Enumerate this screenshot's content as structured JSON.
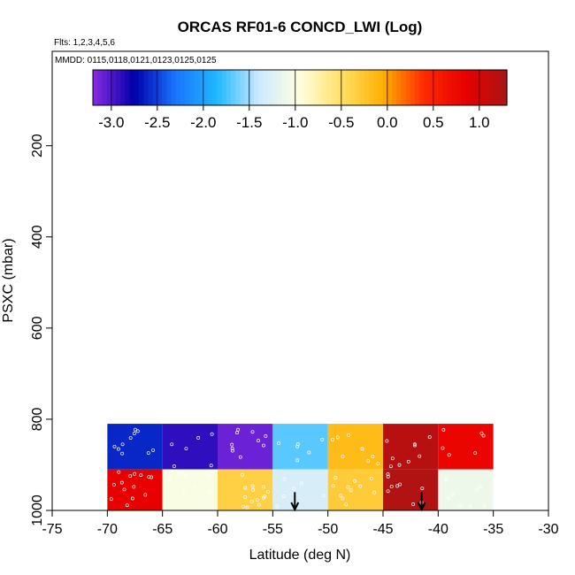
{
  "chart_data": {
    "type": "heatmap",
    "title": "ORCAS RF01-6 CONCD_LWI (Log)",
    "flights_note": "Flts: 1,2,3,4,5,6",
    "dates_note": "MMDD: 0115,0118,0121,0123,0125,0125",
    "xlabel": "Latitude (deg N)",
    "ylabel": "PSXC (mbar)",
    "xlim": [
      -75,
      -30
    ],
    "ylim": [
      1000,
      0
    ],
    "x_ticks": [
      -75,
      -70,
      -65,
      -60,
      -55,
      -50,
      -45,
      -40,
      -35,
      -30
    ],
    "x_tick_labels": [
      "-75",
      "-70",
      "-65",
      "-60",
      "-55",
      "-50",
      "-45",
      "-40",
      "-35",
      "-30"
    ],
    "y_ticks": [
      200,
      400,
      600,
      800,
      1000
    ],
    "y_tick_labels": [
      "200",
      "400",
      "600",
      "800",
      "1000"
    ],
    "colorbar": {
      "range": [
        -3.2,
        1.3
      ],
      "ticks": [
        -3.0,
        -2.5,
        -2.0,
        -1.5,
        -1.0,
        -0.5,
        0.0,
        0.5,
        1.0
      ],
      "tick_labels": [
        "-3.0",
        "-2.5",
        "-2.0",
        "-1.5",
        "-1.0",
        "-0.5",
        "0.0",
        "0.5",
        "1.0"
      ],
      "colors": [
        "#8a2be2",
        "#0000aa",
        "#1a75ff",
        "#1fb8ff",
        "#cce9ff",
        "#ffffe0",
        "#ffe066",
        "#ffb000",
        "#ff2a00",
        "#e80000",
        "#aa1515"
      ]
    },
    "cells": [
      {
        "x": [
          -70,
          -65
        ],
        "p": [
          810,
          910
        ],
        "value": -2.6
      },
      {
        "x": [
          -65,
          -60
        ],
        "p": [
          810,
          910
        ],
        "value": -2.9
      },
      {
        "x": [
          -60,
          -55
        ],
        "p": [
          810,
          910
        ],
        "value": -3.1
      },
      {
        "x": [
          -55,
          -50
        ],
        "p": [
          810,
          910
        ],
        "value": -1.7
      },
      {
        "x": [
          -50,
          -45
        ],
        "p": [
          810,
          910
        ],
        "value": -0.15
      },
      {
        "x": [
          -45,
          -40
        ],
        "p": [
          810,
          910
        ],
        "value": 1.2
      },
      {
        "x": [
          -40,
          -35
        ],
        "p": [
          810,
          910
        ],
        "value": 0.8
      },
      {
        "x": [
          -70,
          -65
        ],
        "p": [
          910,
          1000
        ],
        "value": 0.85
      },
      {
        "x": [
          -65,
          -60
        ],
        "p": [
          910,
          1000
        ],
        "value": -1.0
      },
      {
        "x": [
          -60,
          -55
        ],
        "p": [
          910,
          1000
        ],
        "value": -0.35
      },
      {
        "x": [
          -55,
          -50
        ],
        "p": [
          910,
          1000
        ],
        "value": -1.3
      },
      {
        "x": [
          -50,
          -45
        ],
        "p": [
          910,
          1000
        ],
        "value": -0.3
      },
      {
        "x": [
          -45,
          -40
        ],
        "p": [
          910,
          1000
        ],
        "value": 1.25
      },
      {
        "x": [
          -40,
          -35
        ],
        "p": [
          910,
          1000
        ],
        "value": -1.1
      }
    ],
    "arrows": [
      {
        "x": -53,
        "p_top": 960,
        "p_bottom": 1000
      },
      {
        "x": -41.5,
        "p_top": 960,
        "p_bottom": 1000
      }
    ]
  }
}
